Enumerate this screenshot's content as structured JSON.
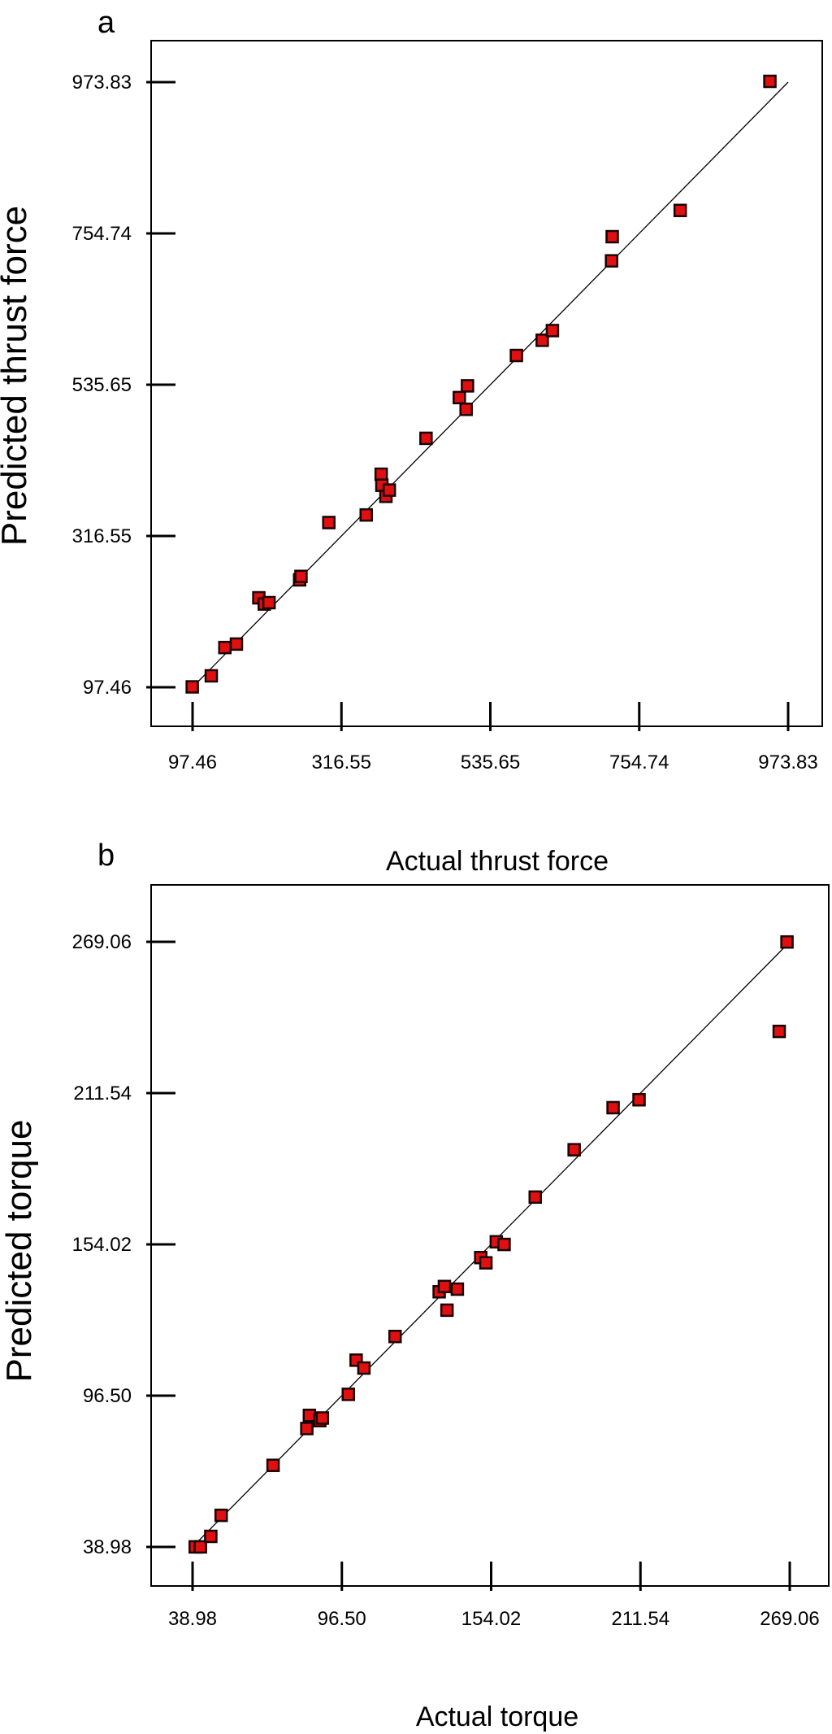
{
  "chart_data": [
    {
      "type": "scatter",
      "panel_label": "a",
      "xlabel": "Actual thrust force",
      "ylabel": "Predicted thrust force",
      "xlim": [
        97.46,
        973.83
      ],
      "ylim": [
        97.46,
        973.83
      ],
      "xticks": [
        "97.46",
        "316.55",
        "535.65",
        "754.74",
        "973.83"
      ],
      "yticks": [
        "97.46",
        "316.55",
        "535.65",
        "754.74",
        "973.83"
      ],
      "grid": false,
      "fit_line": {
        "x": [
          97.46,
          973.83
        ],
        "y": [
          97.46,
          973.83
        ]
      },
      "points": [
        {
          "x": 97,
          "y": 98
        },
        {
          "x": 125,
          "y": 114
        },
        {
          "x": 145,
          "y": 155
        },
        {
          "x": 162,
          "y": 160
        },
        {
          "x": 195,
          "y": 227
        },
        {
          "x": 203,
          "y": 218
        },
        {
          "x": 210,
          "y": 220
        },
        {
          "x": 255,
          "y": 253
        },
        {
          "x": 257,
          "y": 258
        },
        {
          "x": 298,
          "y": 336
        },
        {
          "x": 353,
          "y": 347
        },
        {
          "x": 375,
          "y": 406
        },
        {
          "x": 376,
          "y": 390
        },
        {
          "x": 382,
          "y": 374
        },
        {
          "x": 387,
          "y": 383
        },
        {
          "x": 441,
          "y": 458
        },
        {
          "x": 490,
          "y": 517
        },
        {
          "x": 500,
          "y": 500
        },
        {
          "x": 502,
          "y": 534
        },
        {
          "x": 574,
          "y": 578
        },
        {
          "x": 612,
          "y": 600
        },
        {
          "x": 627,
          "y": 614
        },
        {
          "x": 714,
          "y": 715
        },
        {
          "x": 715,
          "y": 750
        },
        {
          "x": 815,
          "y": 788
        },
        {
          "x": 947,
          "y": 975
        }
      ]
    },
    {
      "type": "scatter",
      "panel_label": "b",
      "xlabel": "Actual torque",
      "ylabel": "Predicted torque",
      "xlim": [
        38.98,
        269.06
      ],
      "ylim": [
        38.98,
        269.06
      ],
      "xticks": [
        "38.98",
        "96.50",
        "154.02",
        "211.54",
        "269.06"
      ],
      "yticks": [
        "38.98",
        "96.50",
        "154.02",
        "211.54",
        "269.06"
      ],
      "grid": false,
      "fit_line": {
        "x": [
          38.98,
          269.06
        ],
        "y": [
          38.98,
          269.06
        ]
      },
      "points": [
        {
          "x": 40,
          "y": 39
        },
        {
          "x": 42,
          "y": 39
        },
        {
          "x": 46,
          "y": 43
        },
        {
          "x": 50,
          "y": 51
        },
        {
          "x": 70,
          "y": 70
        },
        {
          "x": 83,
          "y": 84
        },
        {
          "x": 84,
          "y": 89
        },
        {
          "x": 88,
          "y": 87
        },
        {
          "x": 89,
          "y": 88
        },
        {
          "x": 99,
          "y": 97
        },
        {
          "x": 102,
          "y": 110
        },
        {
          "x": 105,
          "y": 107
        },
        {
          "x": 117,
          "y": 119
        },
        {
          "x": 134,
          "y": 136
        },
        {
          "x": 136,
          "y": 138
        },
        {
          "x": 137,
          "y": 129
        },
        {
          "x": 141,
          "y": 137
        },
        {
          "x": 150,
          "y": 149
        },
        {
          "x": 152,
          "y": 147
        },
        {
          "x": 156,
          "y": 155
        },
        {
          "x": 159,
          "y": 154
        },
        {
          "x": 171,
          "y": 172
        },
        {
          "x": 186,
          "y": 190
        },
        {
          "x": 201,
          "y": 206
        },
        {
          "x": 211,
          "y": 209
        },
        {
          "x": 265,
          "y": 235
        },
        {
          "x": 268,
          "y": 269
        }
      ]
    }
  ]
}
